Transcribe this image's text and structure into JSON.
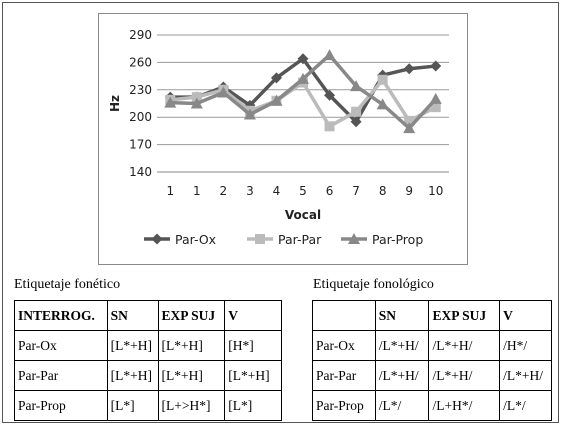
{
  "chart_data": {
    "type": "line",
    "xlabel": "Vocal",
    "ylabel": "Hz",
    "categories": [
      "1",
      "1",
      "2",
      "3",
      "4",
      "5",
      "6",
      "7",
      "8",
      "9",
      "10"
    ],
    "yticks": [
      140,
      170,
      200,
      230,
      260,
      290
    ],
    "ylim": [
      140,
      290
    ],
    "grid": true,
    "legend": "bottom",
    "series": [
      {
        "name": "Par-Ox",
        "color": "#555555",
        "marker": "diamond",
        "values": [
          222,
          222,
          233,
          213,
          243,
          264,
          224,
          195,
          246,
          253,
          256
        ]
      },
      {
        "name": "Par-Par",
        "color": "#bbbbbb",
        "marker": "square",
        "values": [
          219,
          222,
          230,
          207,
          218,
          238,
          190,
          206,
          241,
          196,
          211
        ]
      },
      {
        "name": "Par-Prop",
        "color": "#888888",
        "marker": "triangle",
        "values": [
          216,
          215,
          227,
          203,
          218,
          242,
          268,
          234,
          214,
          188,
          220
        ]
      }
    ]
  },
  "tables": {
    "phonetic": {
      "title": "Etiquetaje fonético",
      "header": [
        "INTERROG.",
        "SN",
        "EXP SUJ",
        "V"
      ],
      "rows": [
        [
          "Par-Ox",
          "[L*+H]",
          "[L*+H]",
          "[H*]"
        ],
        [
          "Par-Par",
          "[L*+H]",
          "[L*+H]",
          "[L*+H]"
        ],
        [
          "Par-Prop",
          "[L*]",
          "[L+>H*]",
          "[L*]"
        ]
      ]
    },
    "phonological": {
      "title": "Etiquetaje fonológico",
      "header": [
        "",
        "SN",
        "EXP SUJ",
        "V"
      ],
      "rows": [
        [
          "Par-Ox",
          "/L*+H/",
          "/L*+H/",
          "/H*/"
        ],
        [
          "Par-Par",
          "/L*+H/",
          "/L*+H/",
          "/L*+H/"
        ],
        [
          "Par-Prop",
          "/L*/",
          "/L+H*/",
          "/L*/"
        ]
      ]
    }
  }
}
